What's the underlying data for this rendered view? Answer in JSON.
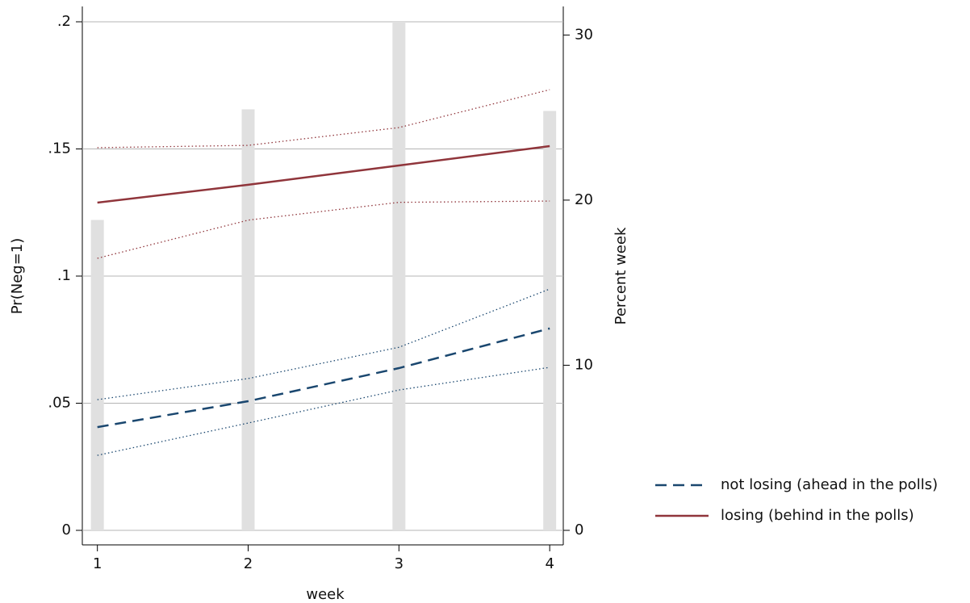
{
  "chart_data": {
    "type": "line",
    "x": [
      1,
      2,
      3,
      4
    ],
    "xlim": [
      0.9,
      4.09
    ],
    "xticks": [
      1,
      2,
      3,
      4
    ],
    "ylim": [
      0,
      0.2
    ],
    "yticks": [
      0,
      {
        "value": 0.05,
        "label": ".05"
      },
      {
        "value": 0.1,
        "label": ".1"
      },
      {
        "value": 0.15,
        "label": ".15"
      },
      {
        "value": 0.2,
        "label": ".2"
      }
    ],
    "y2lim": [
      0,
      30.8
    ],
    "y2ticks": [
      0,
      10,
      20,
      30
    ],
    "x_label": "week",
    "y_label": "Pr(Neg=1)",
    "y2_label": "Percent week",
    "grid": true,
    "legend": "right",
    "bars": {
      "axis": "y2",
      "color": "#e0e0e0",
      "values": [
        18.8,
        25.5,
        30.8,
        25.4
      ]
    },
    "series": [
      {
        "name": "not losing (ahead in the polls)",
        "color": "#1a476f",
        "dash": "14 8",
        "values": [
          0.0406,
          0.0508,
          0.0638,
          0.0794
        ],
        "lower": [
          0.0295,
          0.0422,
          0.0552,
          0.0641
        ],
        "upper": [
          0.0514,
          0.0597,
          0.072,
          0.0949
        ]
      },
      {
        "name": "losing (behind in the polls)",
        "color": "#90353b",
        "dash": "none",
        "values": [
          0.1289,
          0.1359,
          0.1435,
          0.1511
        ],
        "lower": [
          0.107,
          0.122,
          0.129,
          0.1295
        ],
        "upper": [
          0.1505,
          0.1514,
          0.1584,
          0.1733
        ]
      }
    ]
  }
}
